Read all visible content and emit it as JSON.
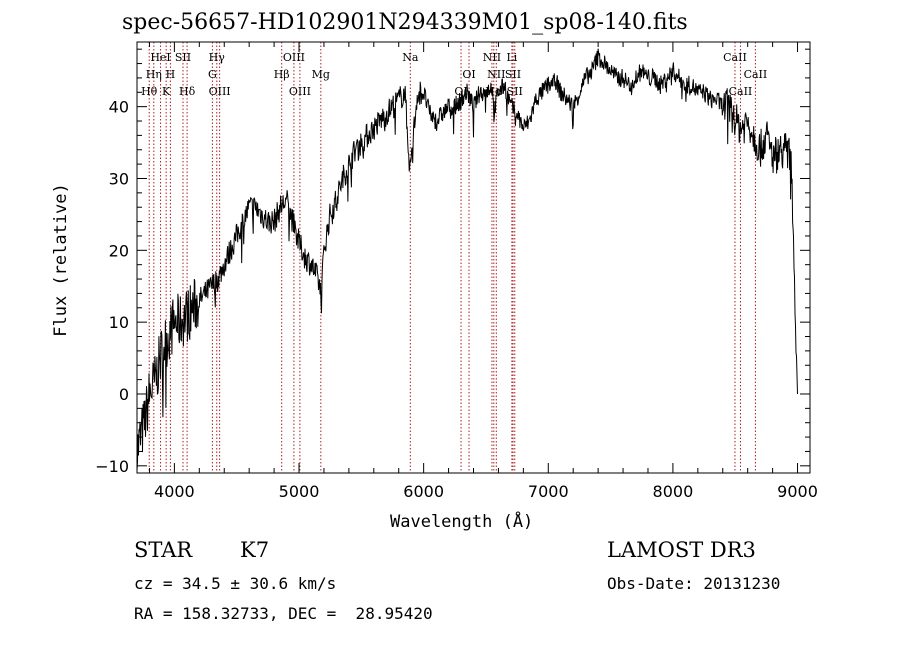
{
  "chart_data": {
    "type": "line",
    "title": "spec-56657-HD102901N294339M01_sp08-140.fits",
    "xlabel": "Wavelength (Å)",
    "ylabel": "Flux (relative)",
    "xlim": [
      3700,
      9100
    ],
    "ylim": [
      -11,
      49
    ],
    "xticks": [
      4000,
      5000,
      6000,
      7000,
      8000,
      9000
    ],
    "yticks": [
      -10,
      0,
      10,
      20,
      30,
      40
    ],
    "grid": false,
    "colors": {
      "spectrum": "#000000",
      "lines": "#b02020"
    },
    "series": [
      {
        "x": [
          3700,
          3760,
          3800,
          3850,
          3900,
          3950,
          4000,
          4050,
          4100,
          4150,
          4200,
          4250,
          4300,
          4350,
          4400,
          4450,
          4500,
          4550,
          4600,
          4650,
          4700,
          4750,
          4800,
          4850,
          4900,
          4950,
          5000,
          5050,
          5100,
          5150,
          5180,
          5200,
          5250,
          5300,
          5350,
          5400,
          5450,
          5500,
          5550,
          5600,
          5650,
          5700,
          5750,
          5800,
          5850,
          5890,
          5950,
          6000,
          6050,
          6100,
          6150,
          6200,
          6250,
          6300,
          6350,
          6400,
          6450,
          6500,
          6550,
          6563,
          6600,
          6650,
          6700,
          6750,
          6800,
          6850,
          6900,
          6950,
          7000,
          7050,
          7100,
          7150,
          7200,
          7250,
          7300,
          7350,
          7400,
          7450,
          7500,
          7550,
          7600,
          7650,
          7700,
          7750,
          7800,
          7850,
          7900,
          7950,
          8000,
          8050,
          8100,
          8150,
          8200,
          8250,
          8300,
          8350,
          8400,
          8450,
          8500,
          8550,
          8600,
          8650,
          8700,
          8750,
          8800,
          8850,
          8900,
          8950,
          9000
        ],
        "values": [
          -8,
          -4,
          0,
          2,
          6,
          8,
          10,
          10,
          11,
          12,
          13,
          14,
          15,
          16,
          18,
          20,
          22,
          24,
          26,
          26,
          25,
          24,
          24,
          26,
          27,
          24,
          21,
          19,
          18,
          16,
          14,
          20,
          25,
          27,
          30,
          32,
          34,
          35,
          36,
          37,
          38,
          39,
          40,
          41,
          42,
          31,
          42,
          42,
          39,
          38,
          39,
          40,
          40,
          41,
          42,
          40,
          42,
          42,
          43,
          39,
          42,
          43,
          40,
          39,
          37,
          38,
          41,
          42,
          43,
          44,
          42,
          41,
          40,
          42,
          44,
          45,
          47,
          46,
          45,
          44,
          44,
          43,
          44,
          45,
          44,
          44,
          43,
          44,
          45,
          44,
          43,
          43,
          42,
          42,
          41,
          41,
          40,
          40,
          38,
          37,
          38,
          36,
          34,
          36,
          33,
          34,
          34,
          33,
          0
        ]
      }
    ],
    "lines": [
      {
        "name": "Hθ",
        "x": 3798,
        "row": 3
      },
      {
        "name": "Hη",
        "x": 3835,
        "row": 2
      },
      {
        "name": "HeI",
        "x": 3889,
        "row": 1
      },
      {
        "name": "K",
        "x": 3934,
        "row": 3
      },
      {
        "name": "H",
        "x": 3968,
        "row": 2
      },
      {
        "name": "SII",
        "x": 4069,
        "row": 1
      },
      {
        "name": "Hδ",
        "x": 4102,
        "row": 3
      },
      {
        "name": "Hγ",
        "x": 4340,
        "row": 1
      },
      {
        "name": "G",
        "x": 4305,
        "row": 2
      },
      {
        "name": "OIII",
        "x": 4363,
        "row": 3
      },
      {
        "name": "Hβ",
        "x": 4861,
        "row": 2
      },
      {
        "name": "OIII",
        "x": 4959,
        "row": 1
      },
      {
        "name": "OIII",
        "x": 5007,
        "row": 3
      },
      {
        "name": "Mg",
        "x": 5175,
        "row": 2
      },
      {
        "name": "Na",
        "x": 5893,
        "row": 1
      },
      {
        "name": "OI",
        "x": 6300,
        "row": 3
      },
      {
        "name": "OI",
        "x": 6364,
        "row": 2
      },
      {
        "name": "NII",
        "x": 6548,
        "row": 1
      },
      {
        "name": "Hα",
        "x": 6563,
        "row": 3
      },
      {
        "name": "NII",
        "x": 6583,
        "row": 2
      },
      {
        "name": "Li",
        "x": 6708,
        "row": 1
      },
      {
        "name": "SII",
        "x": 6717,
        "row": 2
      },
      {
        "name": "SII",
        "x": 6731,
        "row": 3
      },
      {
        "name": "CaII",
        "x": 8498,
        "row": 1
      },
      {
        "name": "CaII",
        "x": 8542,
        "row": 3
      },
      {
        "name": "CaII",
        "x": 8662,
        "row": 2
      }
    ]
  },
  "info": {
    "object_class": "STAR",
    "subclass": "K7",
    "survey": "LAMOST DR3",
    "cz": "cz = 34.5 ± 30.6 km/s",
    "obs_date": "Obs-Date: 20131230",
    "radec": "RA = 158.32733, DEC =  28.95420"
  }
}
